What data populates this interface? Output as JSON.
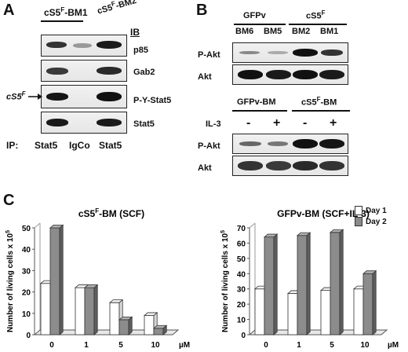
{
  "panel_a": {
    "letter": "A",
    "title_prefix": "cS5",
    "title_sup": "F",
    "title_suffix": "-BM1",
    "title2_prefix": "cS5",
    "title2_sup": "F",
    "title2_suffix": "-BM2",
    "ib_label": "IB",
    "blot_labels": [
      "p85",
      "Gab2",
      "P-Y-Stat5",
      "Stat5"
    ],
    "arrow_label_prefix": "cS5",
    "arrow_label_sup": "F",
    "ip_prefix": "IP:",
    "ip_lanes": [
      "Stat5",
      "IgCo",
      "Stat5"
    ]
  },
  "panel_b": {
    "letter": "B",
    "group1": "GFPv",
    "group2_prefix": "cS5",
    "group2_sup": "F",
    "lanes_top": [
      "BM6",
      "BM5",
      "BM2",
      "BM1"
    ],
    "row_top": [
      "P-Akt",
      "Akt"
    ],
    "group3": "GFPv-BM",
    "group4_prefix": "cS5",
    "group4_sup": "F",
    "group4_suffix": "-BM",
    "il3_label": "IL-3",
    "il3_signs": [
      "-",
      "+",
      "-",
      "+"
    ],
    "row_bottom": [
      "P-Akt",
      "Akt"
    ]
  },
  "panel_c": {
    "letter": "C",
    "legend": [
      "Day 1",
      "Day 2"
    ]
  },
  "chart_data": [
    {
      "type": "bar",
      "title": "cS5F-BM (SCF)",
      "categories": [
        "0",
        "1",
        "5",
        "10"
      ],
      "x_unit": "µM",
      "ylabel": "Number of living cells  x 10^5",
      "ylim": [
        0,
        50
      ],
      "yticks": [
        0,
        10,
        20,
        30,
        40,
        50
      ],
      "series": [
        {
          "name": "Day 1",
          "values": [
            24,
            22,
            15,
            9
          ]
        },
        {
          "name": "Day 2",
          "values": [
            50,
            22,
            7,
            3
          ]
        }
      ]
    },
    {
      "type": "bar",
      "title": "GFPv-BM (SCF+IL-3)",
      "categories": [
        "0",
        "1",
        "5",
        "10"
      ],
      "x_unit": "µM",
      "ylabel": "Number of living cells  x 10^5",
      "ylim": [
        0,
        70
      ],
      "yticks": [
        0,
        10,
        20,
        30,
        40,
        50,
        60,
        70
      ],
      "series": [
        {
          "name": "Day 1",
          "values": [
            30,
            27,
            29,
            30
          ]
        },
        {
          "name": "Day 2",
          "values": [
            64,
            65,
            67,
            40
          ]
        }
      ]
    }
  ]
}
